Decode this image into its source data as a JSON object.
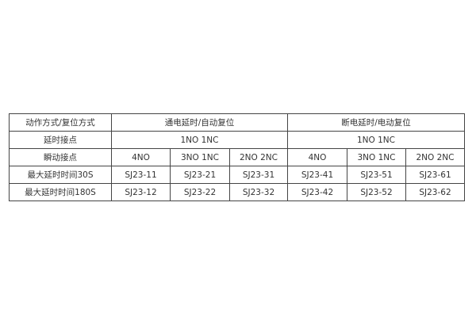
{
  "table": {
    "header": {
      "label": "动作方式/复位方式",
      "group1": "通电延时/自动复位",
      "group2": "断电延时/电动复位"
    },
    "delay_contact": {
      "label": "延时接点",
      "group1": "1NO 1NC",
      "group2": "1NO 1NC"
    },
    "instant_contact": {
      "label": "瞬动接点",
      "values": [
        "4NO",
        "3NO 1NC",
        "2NO 2NC",
        "4NO",
        "3NO 1NC",
        "2NO 2NC"
      ]
    },
    "rows": [
      {
        "label": "最大延时时间30S",
        "values": [
          "SJ23-11",
          "SJ23-21",
          "SJ23-31",
          "SJ23-41",
          "SJ23-51",
          "SJ23-61"
        ]
      },
      {
        "label": "最大延时时间180S",
        "values": [
          "SJ23-12",
          "SJ23-22",
          "SJ23-32",
          "SJ23-42",
          "SJ23-52",
          "SJ23-62"
        ]
      }
    ]
  }
}
